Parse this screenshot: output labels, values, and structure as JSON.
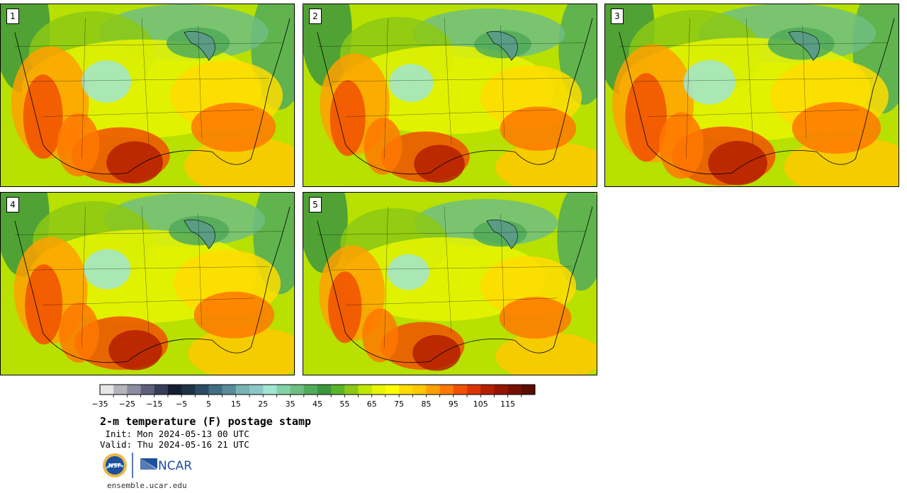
{
  "panels": [
    {
      "label": "1"
    },
    {
      "label": "2"
    },
    {
      "label": "3"
    },
    {
      "label": "4"
    },
    {
      "label": "5"
    }
  ],
  "colorbar": {
    "colors": [
      "#e6e6e6",
      "#b4b4be",
      "#8c8ca0",
      "#5f5f7d",
      "#373c5a",
      "#141e32",
      "#1e3246",
      "#2d4b64",
      "#416e82",
      "#5a8c9b",
      "#78b4b4",
      "#8cc8c8",
      "#a0e6d2",
      "#82d2aa",
      "#6ebe82",
      "#50aa5a",
      "#3c963c",
      "#5ab428",
      "#8cc814",
      "#bee600",
      "#e6f500",
      "#ffff00",
      "#ffdc00",
      "#ffc800",
      "#ffa000",
      "#ff7800",
      "#f05000",
      "#dc3200",
      "#b41e00",
      "#961400",
      "#781000",
      "#5a0c00"
    ],
    "ticks": [
      "−35",
      "−25",
      "−15",
      "−5",
      "5",
      "15",
      "25",
      "35",
      "45",
      "55",
      "65",
      "75",
      "85",
      "95",
      "105",
      "115"
    ]
  },
  "title": "2-m temperature (F) postage stamp",
  "init": " Init: Mon 2024-05-13 00 UTC",
  "valid": "Valid: Thu 2024-05-16 21 UTC",
  "site": "ensemble.ucar.edu",
  "logos": {
    "nsf": "NSF",
    "ncar": "NCAR"
  }
}
